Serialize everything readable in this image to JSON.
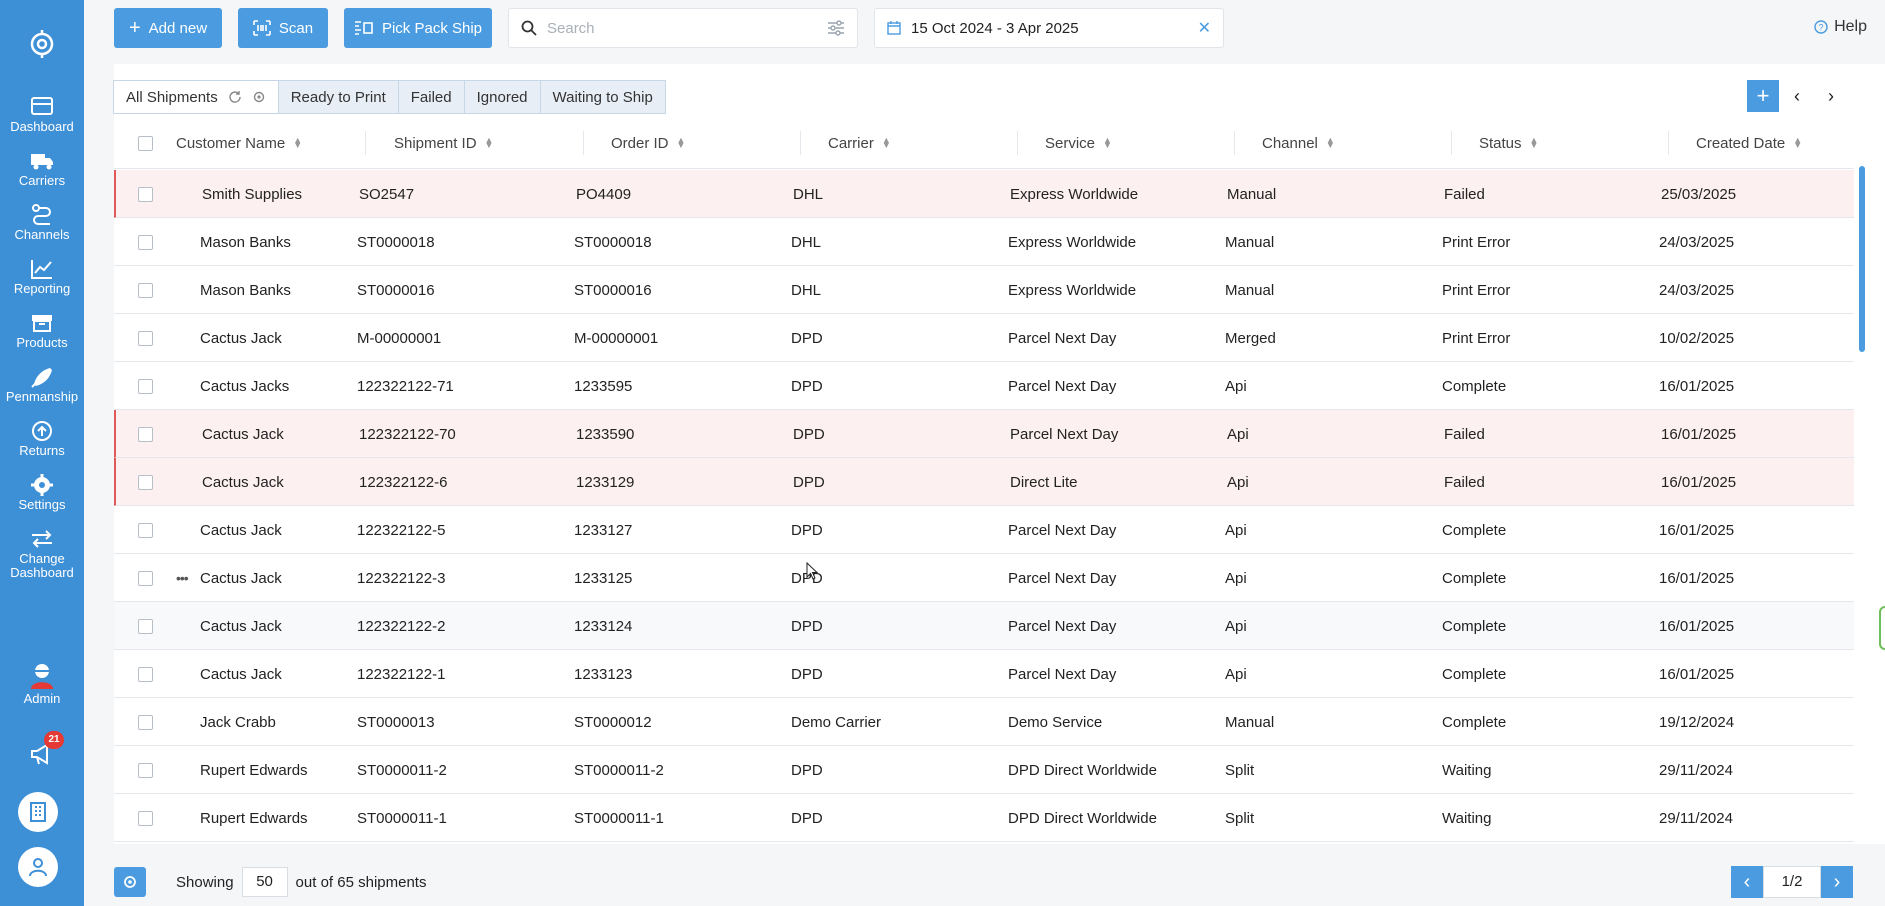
{
  "sidebar": {
    "items": [
      {
        "label": "Dashboard",
        "icon": "dashboard-icon"
      },
      {
        "label": "Carriers",
        "icon": "truck-icon"
      },
      {
        "label": "Channels",
        "icon": "route-icon"
      },
      {
        "label": "Reporting",
        "icon": "chart-icon"
      },
      {
        "label": "Products",
        "icon": "box-icon"
      },
      {
        "label": "Penmanship",
        "icon": "pen-icon"
      },
      {
        "label": "Returns",
        "icon": "return-icon"
      },
      {
        "label": "Settings",
        "icon": "gear-icon"
      },
      {
        "label": "Change",
        "label2": "Dashboard",
        "icon": "swap-icon"
      }
    ],
    "admin_label": "Admin",
    "notification_count": "21"
  },
  "toolbar": {
    "add_label": "Add new",
    "scan_label": "Scan",
    "pick_label": "Pick Pack Ship",
    "search_placeholder": "Search",
    "date_range": "15 Oct 2024 - 3 Apr 2025",
    "help_label": "Help"
  },
  "tabs": [
    "All Shipments",
    "Ready to Print",
    "Failed",
    "Ignored",
    "Waiting to Ship"
  ],
  "columns": [
    "Customer Name",
    "Shipment ID",
    "Order ID",
    "Carrier",
    "Service",
    "Channel",
    "Status",
    "Created Date"
  ],
  "rows": [
    {
      "customer": "Smith Supplies",
      "shipment": "SO2547",
      "order": "PO4409",
      "carrier": "DHL",
      "service": "Express Worldwide",
      "channel": "Manual",
      "status": "Failed",
      "date": "25/03/2025"
    },
    {
      "customer": "Mason Banks",
      "shipment": "ST0000018",
      "order": "ST0000018",
      "carrier": "DHL",
      "service": "Express Worldwide",
      "channel": "Manual",
      "status": "Print Error",
      "date": "24/03/2025"
    },
    {
      "customer": "Mason Banks",
      "shipment": "ST0000016",
      "order": "ST0000016",
      "carrier": "DHL",
      "service": "Express Worldwide",
      "channel": "Manual",
      "status": "Print Error",
      "date": "24/03/2025"
    },
    {
      "customer": "Cactus Jack",
      "shipment": "M-00000001",
      "order": "M-00000001",
      "carrier": "DPD",
      "service": "Parcel Next Day",
      "channel": "Merged",
      "status": "Print Error",
      "date": "10/02/2025"
    },
    {
      "customer": "Cactus Jacks",
      "shipment": "122322122-71",
      "order": "1233595",
      "carrier": "DPD",
      "service": "Parcel Next Day",
      "channel": "Api",
      "status": "Complete",
      "date": "16/01/2025"
    },
    {
      "customer": "Cactus Jack",
      "shipment": "122322122-70",
      "order": "1233590",
      "carrier": "DPD",
      "service": "Parcel Next Day",
      "channel": "Api",
      "status": "Failed",
      "date": "16/01/2025"
    },
    {
      "customer": "Cactus Jack",
      "shipment": "122322122-6",
      "order": "1233129",
      "carrier": "DPD",
      "service": "Direct Lite",
      "channel": "Api",
      "status": "Failed",
      "date": "16/01/2025"
    },
    {
      "customer": "Cactus Jack",
      "shipment": "122322122-5",
      "order": "1233127",
      "carrier": "DPD",
      "service": "Parcel Next Day",
      "channel": "Api",
      "status": "Complete",
      "date": "16/01/2025"
    },
    {
      "customer": "Cactus Jack",
      "shipment": "122322122-3",
      "order": "1233125",
      "carrier": "DPD",
      "service": "Parcel Next Day",
      "channel": "Api",
      "status": "Complete",
      "date": "16/01/2025"
    },
    {
      "customer": "Cactus Jack",
      "shipment": "122322122-2",
      "order": "1233124",
      "carrier": "DPD",
      "service": "Parcel Next Day",
      "channel": "Api",
      "status": "Complete",
      "date": "16/01/2025"
    },
    {
      "customer": "Cactus Jack",
      "shipment": "122322122-1",
      "order": "1233123",
      "carrier": "DPD",
      "service": "Parcel Next Day",
      "channel": "Api",
      "status": "Complete",
      "date": "16/01/2025"
    },
    {
      "customer": "Jack Crabb",
      "shipment": "ST0000013",
      "order": "ST0000012",
      "carrier": "Demo Carrier",
      "service": "Demo Service",
      "channel": "Manual",
      "status": "Complete",
      "date": "19/12/2024"
    },
    {
      "customer": "Rupert Edwards",
      "shipment": "ST0000011-2",
      "order": "ST0000011-2",
      "carrier": "DPD",
      "service": "DPD Direct Worldwide",
      "channel": "Split",
      "status": "Waiting",
      "date": "29/11/2024"
    },
    {
      "customer": "Rupert Edwards",
      "shipment": "ST0000011-1",
      "order": "ST0000011-1",
      "carrier": "DPD",
      "service": "DPD Direct Worldwide",
      "channel": "Split",
      "status": "Waiting",
      "date": "29/11/2024"
    }
  ],
  "footer": {
    "showing_label": "Showing",
    "page_size": "50",
    "total_label": "out of 65 shipments",
    "page": "1/2"
  }
}
